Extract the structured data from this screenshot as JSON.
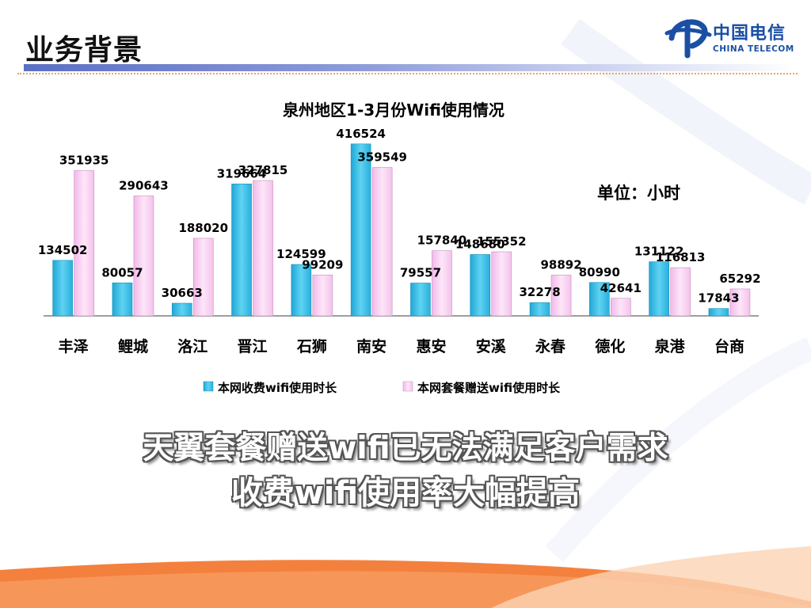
{
  "slide": {
    "title": "业务背景",
    "logo_cn": "中国电信",
    "logo_en": "CHINA TELECOM",
    "unit_label": "单位：小时",
    "headline_1": "天翼套餐赠送wifi已无法满足客户需求",
    "headline_2": "收费wifi使用率大幅提高"
  },
  "colors": {
    "accent_blue": "#1a4fa3",
    "paid_series": "#3fc1e6",
    "free_series": "#f7ccf0",
    "swoosh": "#f26a1b"
  },
  "chart_data": {
    "type": "bar",
    "title": "泉州地区1-3月份Wifi使用情况",
    "xlabel": "",
    "ylabel": "",
    "ylim": [
      0,
      420000
    ],
    "grid": false,
    "legend_position": "bottom",
    "categories": [
      "丰泽",
      "鲤城",
      "洛江",
      "晋江",
      "石狮",
      "南安",
      "惠安",
      "安溪",
      "永春",
      "德化",
      "泉港",
      "台商"
    ],
    "series": [
      {
        "name": "本网收费wifi使用时长",
        "values": [
          134502,
          80057,
          30663,
          319664,
          124599,
          416524,
          79557,
          148680,
          32278,
          80990,
          131122,
          17843
        ]
      },
      {
        "name": "本网套餐赠送wifi使用时长",
        "values": [
          351935,
          290643,
          188020,
          327815,
          99209,
          359549,
          157840,
          155352,
          98892,
          42641,
          116813,
          65292
        ]
      }
    ]
  }
}
